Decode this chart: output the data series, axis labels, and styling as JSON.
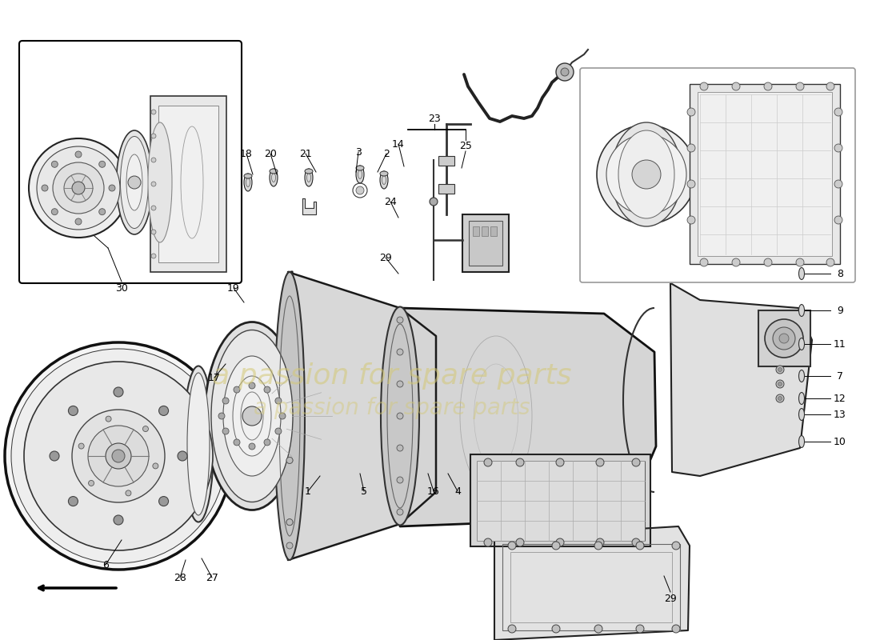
{
  "background_color": "#ffffff",
  "watermark_color": "#d4c875",
  "figsize": [
    11.0,
    8.0
  ],
  "dpi": 100
}
